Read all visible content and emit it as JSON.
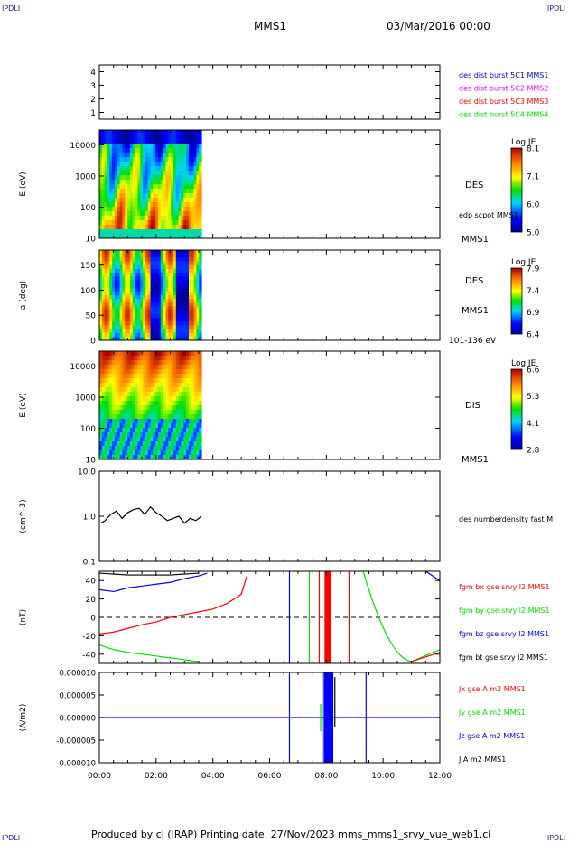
{
  "corners": {
    "tl": "IPDLI",
    "tr": "IPDLI",
    "bl": "IPDLI",
    "br": "IPDLI"
  },
  "header": {
    "title": "MMS1",
    "date": "03/Mar/2016 00:00"
  },
  "footer": {
    "text": "Produced by cl (IRAP)   Printing date: 27/Nov/2023   mms_mms1_srvy_vue_web1.cl"
  },
  "colors": {
    "blue": "#0000ff",
    "magenta": "#ff00ff",
    "red": "#ff0000",
    "green": "#00e000",
    "black": "#000000"
  },
  "chart_data": [
    {
      "id": "panel1",
      "type": "line",
      "ylim": [
        0.5,
        4.5
      ],
      "yticks": [
        "1",
        "2",
        "3",
        "4"
      ],
      "series": [
        {
          "name": "des dist burst 5C1 MMS1",
          "color": "#0000ff",
          "values": []
        },
        {
          "name": "des dist burst 5C2 MMS2",
          "color": "#ff00ff",
          "values": []
        },
        {
          "name": "des dist burst 5C3 MMS3",
          "color": "#ff0000",
          "values": []
        },
        {
          "name": "des dist burst 5C4 MMS4",
          "color": "#00e000",
          "values": []
        }
      ]
    },
    {
      "id": "panel2",
      "type": "heatmap",
      "ylabel": "E (eV)",
      "yscale": "log",
      "ylim": [
        10,
        30000
      ],
      "yticks": [
        "10",
        "100",
        "1000",
        "10000"
      ],
      "xrange_hours": [
        0,
        3.6
      ],
      "labels": [
        "DES",
        "edp scpot MMS1",
        "MMS1"
      ],
      "colorbar": {
        "title": "Log JE",
        "ticks": [
          "8.1",
          "7.1",
          "6.0",
          "5.0"
        ]
      }
    },
    {
      "id": "panel3",
      "type": "heatmap",
      "ylabel": "a (deg)",
      "ylim": [
        0,
        180
      ],
      "yticks": [
        "0",
        "50",
        "100",
        "150"
      ],
      "xrange_hours": [
        0,
        3.6
      ],
      "labels": [
        "DES",
        "MMS1",
        "101-136 eV"
      ],
      "colorbar": {
        "title": "Log JE",
        "ticks": [
          "7.9",
          "7.4",
          "6.9",
          "6.4"
        ]
      }
    },
    {
      "id": "panel4",
      "type": "heatmap",
      "ylabel": "E (eV)",
      "yscale": "log",
      "ylim": [
        10,
        30000
      ],
      "yticks": [
        "10",
        "100",
        "1000",
        "10000"
      ],
      "xrange_hours": [
        0,
        3.6
      ],
      "labels": [
        "DIS",
        "MMS1"
      ],
      "colorbar": {
        "title": "Log JE",
        "ticks": [
          "6.6",
          "5.3",
          "4.1",
          "2.8"
        ]
      }
    },
    {
      "id": "panel5",
      "type": "line",
      "ylabel": "(cm^-3)",
      "yscale": "log",
      "ylim": [
        0.1,
        10
      ],
      "yticks": [
        "0.1",
        "1.0",
        "10.0"
      ],
      "series": [
        {
          "name": "des numberdensity fast M",
          "color": "#000000",
          "x": [
            0.05,
            0.2,
            0.4,
            0.6,
            0.8,
            1.0,
            1.2,
            1.4,
            1.6,
            1.8,
            2.0,
            2.2,
            2.4,
            2.6,
            2.8,
            3.0,
            3.2,
            3.4,
            3.6
          ],
          "values": [
            0.7,
            0.8,
            1.1,
            1.3,
            0.9,
            1.2,
            1.4,
            1.5,
            1.1,
            1.6,
            1.2,
            1.0,
            0.8,
            0.9,
            1.0,
            0.7,
            0.9,
            0.8,
            1.0
          ]
        }
      ]
    },
    {
      "id": "panel6",
      "type": "line",
      "ylabel": "(nT)",
      "ylim": [
        -50,
        50
      ],
      "yticks": [
        "-40",
        "-20",
        "0",
        "20",
        "40"
      ],
      "series": [
        {
          "name": "fgm bx gse srvy l2 MMS1",
          "color": "#ff0000",
          "x": [
            0,
            0.5,
            1.0,
            1.5,
            2.0,
            2.5,
            3.0,
            3.5,
            4.0,
            4.5,
            5.0,
            5.2
          ],
          "values": [
            -18,
            -16,
            -12,
            -8,
            -5,
            0,
            3,
            6,
            9,
            15,
            25,
            45
          ]
        },
        {
          "name": "fgm by gse srvy l2 MMS1",
          "color": "#00e000",
          "x": [
            0,
            0.5,
            1.0,
            1.5,
            2.0,
            2.5,
            3.0,
            3.5
          ],
          "values": [
            -30,
            -35,
            -38,
            -40,
            -42,
            -44,
            -46,
            -48
          ]
        },
        {
          "name": "fgm bz gse srvy l2 MMS1",
          "color": "#0000ff",
          "x": [
            0,
            0.5,
            1.0,
            1.5,
            2.0,
            2.5,
            3.0,
            3.5,
            3.8
          ],
          "values": [
            30,
            28,
            32,
            34,
            36,
            38,
            42,
            45,
            48
          ]
        },
        {
          "name": "fgm bt gse srvy l2 MMS1",
          "color": "#000000",
          "x": [
            0,
            0.5,
            1.0,
            1.5,
            2.0,
            2.5,
            3.0,
            3.5
          ],
          "values": [
            48,
            47,
            46,
            46,
            46,
            46,
            47,
            48
          ]
        }
      ]
    },
    {
      "id": "panel7",
      "type": "line",
      "ylabel": "(A/m2)",
      "ylim": [
        -1e-05,
        1e-05
      ],
      "yticks": [
        "-0.000010",
        "-0.000005",
        "0.000000",
        "0.000005",
        "0.000010"
      ],
      "series": [
        {
          "name": "Jx gse A m2 MMS1",
          "color": "#ff0000",
          "values": []
        },
        {
          "name": "Jy gse A m2 MMS1",
          "color": "#00e000",
          "values": []
        },
        {
          "name": "Jz gse A m2 MMS1",
          "color": "#0000ff",
          "values": []
        },
        {
          "name": "J A m2 MMS1",
          "color": "#000000",
          "values": []
        }
      ]
    }
  ],
  "xaxis": {
    "ticks": [
      "00:00",
      "02:00",
      "04:00",
      "06:00",
      "08:00",
      "10:00",
      "12:00"
    ],
    "range_hours": [
      0,
      12
    ]
  }
}
